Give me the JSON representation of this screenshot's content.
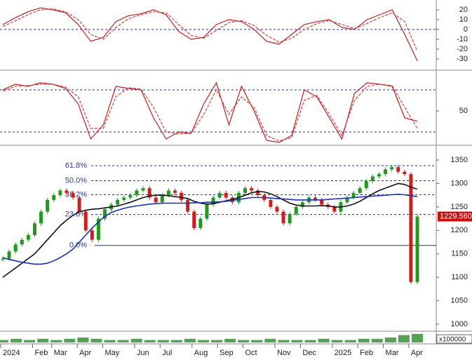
{
  "chart_data": [
    {
      "type": "line",
      "ylim": [
        -40,
        30
      ],
      "yticks": [
        20,
        10,
        0,
        -10,
        -20,
        -30
      ],
      "ref_lines": [
        0
      ],
      "series": [
        {
          "color": "#b52020",
          "dash": false,
          "values": [
            5,
            12,
            18,
            22,
            20,
            17,
            5,
            -12,
            -8,
            8,
            14,
            16,
            20,
            15,
            -2,
            -10,
            -8,
            5,
            10,
            8,
            0,
            -12,
            -15,
            -5,
            5,
            8,
            10,
            2,
            0,
            10,
            15,
            20,
            -5,
            -32
          ]
        },
        {
          "color": "#d04040",
          "dash": true,
          "values": [
            3,
            9,
            15,
            20,
            21,
            18,
            10,
            -5,
            -10,
            2,
            11,
            15,
            18,
            17,
            5,
            -6,
            -9,
            -1,
            7,
            9,
            4,
            -6,
            -13,
            -9,
            0,
            6,
            9,
            5,
            1,
            6,
            12,
            17,
            8,
            -22
          ]
        }
      ]
    },
    {
      "type": "line",
      "ylim": [
        5,
        105
      ],
      "yticks": [
        50
      ],
      "ref_lines": [
        80,
        20
      ],
      "series": [
        {
          "color": "#b52020",
          "dash": false,
          "values": [
            80,
            88,
            85,
            90,
            88,
            82,
            60,
            10,
            30,
            85,
            82,
            80,
            40,
            10,
            20,
            18,
            60,
            90,
            30,
            85,
            50,
            8,
            5,
            15,
            80,
            70,
            40,
            10,
            75,
            90,
            88,
            85,
            40,
            35
          ]
        },
        {
          "color": "#d04040",
          "dash": true,
          "values": [
            78,
            85,
            86,
            88,
            88,
            84,
            70,
            25,
            25,
            70,
            83,
            81,
            55,
            20,
            17,
            18,
            45,
            80,
            45,
            70,
            55,
            15,
            7,
            12,
            65,
            72,
            45,
            15,
            65,
            85,
            88,
            86,
            55,
            25
          ]
        }
      ]
    },
    {
      "type": "price",
      "ylim": [
        988,
        1377
      ],
      "yticks": [
        1350,
        1300,
        1250,
        1200,
        1150,
        1100,
        1050,
        1000
      ],
      "up_color": "#1f9a1f",
      "down_color": "#cc2020",
      "categories": [
        "2024",
        null,
        null,
        null,
        null,
        "Feb",
        null,
        null,
        "Mar",
        null,
        null,
        null,
        "Apr",
        null,
        null,
        null,
        "May",
        null,
        null,
        null,
        null,
        "Jun",
        null,
        null,
        null,
        "Jul",
        null,
        null,
        null,
        null,
        "Aug",
        null,
        null,
        null,
        "Sep",
        null,
        null,
        null,
        "Oct",
        null,
        null,
        null,
        null,
        "Nov",
        null,
        null,
        null,
        "Dec",
        null,
        null,
        null,
        null,
        "2025",
        null,
        null,
        null,
        "Feb",
        null,
        null,
        null,
        "Mar",
        null,
        null,
        null,
        "Apr",
        null
      ],
      "values": [
        1140,
        1155,
        1170,
        1180,
        1190,
        1215,
        1240,
        1265,
        1275,
        1285,
        1280,
        1270,
        1240,
        1200,
        1180,
        1225,
        1245,
        1255,
        1265,
        1270,
        1275,
        1285,
        1290,
        1270,
        1260,
        1275,
        1285,
        1280,
        1265,
        1240,
        1205,
        1225,
        1255,
        1270,
        1280,
        1270,
        1260,
        1280,
        1290,
        1285,
        1275,
        1265,
        1250,
        1240,
        1215,
        1235,
        1250,
        1260,
        1270,
        1265,
        1255,
        1250,
        1240,
        1260,
        1270,
        1280,
        1290,
        1305,
        1315,
        1320,
        1330,
        1335,
        1325,
        1320,
        1090,
        1229.56
      ],
      "value_labels": [
        null,
        null,
        null,
        null,
        null,
        null,
        null,
        null,
        null,
        null,
        null,
        null,
        null,
        null,
        null,
        null,
        null,
        null,
        null,
        null,
        null,
        null,
        null,
        null,
        null,
        null,
        null,
        null,
        null,
        null,
        null,
        null,
        null,
        null,
        null,
        null,
        null,
        null,
        null,
        null,
        null,
        null,
        null,
        null,
        null,
        null,
        null,
        null,
        null,
        null,
        null,
        null,
        null,
        null,
        null,
        null,
        null,
        null,
        null,
        null,
        null,
        null,
        null,
        null,
        null,
        "1229.560"
      ],
      "series": [
        {
          "color": "#111111",
          "values": [
            1100,
            1110,
            1120,
            1130,
            1140,
            1150,
            1165,
            1180,
            1195,
            1210,
            1222,
            1232,
            1240,
            1243,
            1245,
            1246,
            1248,
            1250,
            1252,
            1256,
            1260,
            1265,
            1270,
            1273,
            1275,
            1275,
            1274,
            1272,
            1270,
            1268,
            1262,
            1258,
            1256,
            1257,
            1260,
            1263,
            1266,
            1270,
            1275,
            1280,
            1283,
            1282,
            1278,
            1272,
            1265,
            1258,
            1254,
            1252,
            1252,
            1252,
            1253,
            1252,
            1250,
            1250,
            1252,
            1256,
            1262,
            1270,
            1278,
            1285,
            1290,
            1295,
            1300,
            1298,
            1292,
            1288
          ]
        },
        {
          "color": "#1c2fb0",
          "values": [
            1142,
            1138,
            1135,
            1132,
            1130,
            1128,
            1128,
            1130,
            1135,
            1142,
            1150,
            1160,
            1175,
            1190,
            1205,
            1218,
            1230,
            1238,
            1243,
            1247,
            1250,
            1252,
            1254,
            1256,
            1257,
            1258,
            1258,
            1258,
            1258,
            1258,
            1259,
            1259,
            1260,
            1260,
            1261,
            1262,
            1264,
            1266,
            1268,
            1270,
            1270,
            1270,
            1269,
            1268,
            1267,
            1266,
            1265,
            1265,
            1265,
            1265,
            1265,
            1266,
            1267,
            1268,
            1269,
            1270,
            1271,
            1272,
            1273,
            1274,
            1275,
            1276,
            1277,
            1276,
            1274,
            1272
          ]
        }
      ],
      "levels": [
        {
          "label": "61.8%",
          "value": 1338
        },
        {
          "label": "50.0%",
          "value": 1306
        },
        {
          "label": "38.2%",
          "value": 1276
        },
        {
          "label": "23.6%",
          "value": 1234
        },
        {
          "label": "0.0%",
          "value": 1168
        }
      ]
    },
    {
      "type": "bar",
      "ylim": [
        0,
        8
      ],
      "unit_label": "x100000",
      "color": "#2a8a2a",
      "values": [
        2,
        3,
        2,
        3,
        2,
        3,
        4,
        3,
        2,
        2,
        3,
        2,
        2,
        2,
        3,
        2,
        2,
        3,
        2,
        2,
        3,
        2,
        2,
        2,
        3,
        2,
        2,
        3,
        3,
        4,
        6,
        7
      ]
    }
  ]
}
